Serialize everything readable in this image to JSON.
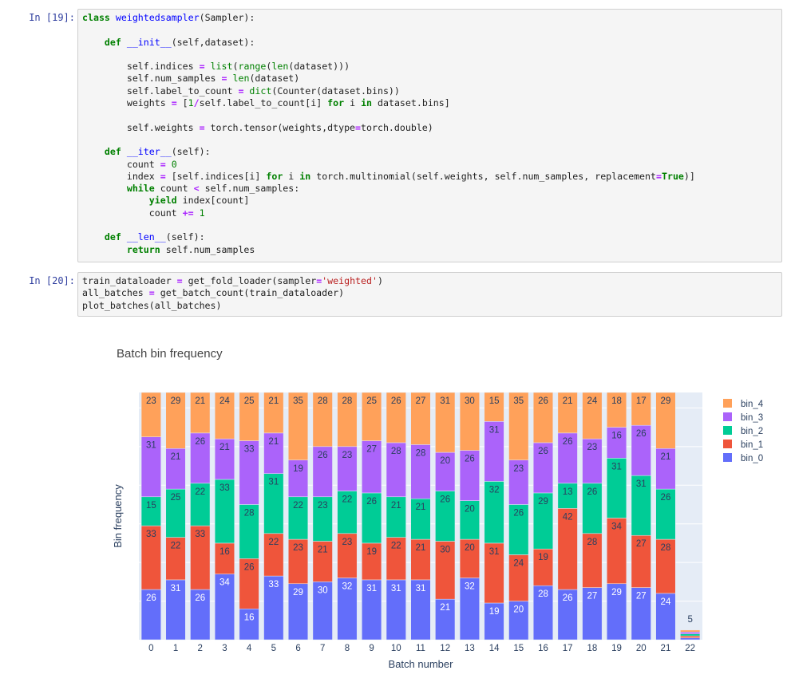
{
  "cells": [
    {
      "prompt": "In [19]:",
      "lines": [
        [
          [
            "kw",
            "class "
          ],
          [
            "fn",
            "weightedsampler"
          ],
          [
            "pl",
            "(Sampler):"
          ]
        ],
        [],
        [
          [
            "pl",
            "    "
          ],
          [
            "kw",
            "def "
          ],
          [
            "fn",
            "__init__"
          ],
          [
            "pl",
            "(self,dataset):"
          ]
        ],
        [],
        [
          [
            "pl",
            "        self.indices "
          ],
          [
            "op",
            "="
          ],
          [
            "pl",
            " "
          ],
          [
            "bi",
            "list"
          ],
          [
            "pl",
            "("
          ],
          [
            "bi",
            "range"
          ],
          [
            "pl",
            "("
          ],
          [
            "bi",
            "len"
          ],
          [
            "pl",
            "(dataset)))"
          ]
        ],
        [
          [
            "pl",
            "        self.num_samples "
          ],
          [
            "op",
            "="
          ],
          [
            "pl",
            " "
          ],
          [
            "bi",
            "len"
          ],
          [
            "pl",
            "(dataset)"
          ]
        ],
        [
          [
            "pl",
            "        self.label_to_count "
          ],
          [
            "op",
            "="
          ],
          [
            "pl",
            " "
          ],
          [
            "bi",
            "dict"
          ],
          [
            "pl",
            "(Counter(dataset.bins))"
          ]
        ],
        [
          [
            "pl",
            "        weights "
          ],
          [
            "op",
            "="
          ],
          [
            "pl",
            " ["
          ],
          [
            "num",
            "1"
          ],
          [
            "op",
            "/"
          ],
          [
            "pl",
            "self.label_to_count[i] "
          ],
          [
            "kw",
            "for"
          ],
          [
            "pl",
            " i "
          ],
          [
            "kw",
            "in"
          ],
          [
            "pl",
            " dataset.bins]"
          ]
        ],
        [],
        [
          [
            "pl",
            "        self.weights "
          ],
          [
            "op",
            "="
          ],
          [
            "pl",
            " torch.tensor(weights,dtype"
          ],
          [
            "op",
            "="
          ],
          [
            "pl",
            "torch.double)"
          ]
        ],
        [],
        [
          [
            "pl",
            "    "
          ],
          [
            "kw",
            "def "
          ],
          [
            "fn",
            "__iter__"
          ],
          [
            "pl",
            "(self):"
          ]
        ],
        [
          [
            "pl",
            "        count "
          ],
          [
            "op",
            "="
          ],
          [
            "pl",
            " "
          ],
          [
            "num",
            "0"
          ]
        ],
        [
          [
            "pl",
            "        index "
          ],
          [
            "op",
            "="
          ],
          [
            "pl",
            " [self.indices[i] "
          ],
          [
            "kw",
            "for"
          ],
          [
            "pl",
            " i "
          ],
          [
            "kw",
            "in"
          ],
          [
            "pl",
            " torch.multinomial(self.weights, self.num_samples, replacement"
          ],
          [
            "op",
            "="
          ],
          [
            "kw",
            "True"
          ],
          [
            "pl",
            ")]"
          ]
        ],
        [
          [
            "pl",
            "        "
          ],
          [
            "kw",
            "while"
          ],
          [
            "pl",
            " count "
          ],
          [
            "op",
            "<"
          ],
          [
            "pl",
            " self.num_samples:"
          ]
        ],
        [
          [
            "pl",
            "            "
          ],
          [
            "kw",
            "yield"
          ],
          [
            "pl",
            " index[count]"
          ]
        ],
        [
          [
            "pl",
            "            count "
          ],
          [
            "op",
            "+="
          ],
          [
            "pl",
            " "
          ],
          [
            "num",
            "1"
          ]
        ],
        [],
        [
          [
            "pl",
            "    "
          ],
          [
            "kw",
            "def "
          ],
          [
            "fn",
            "__len__"
          ],
          [
            "pl",
            "(self):"
          ]
        ],
        [
          [
            "pl",
            "        "
          ],
          [
            "kw",
            "return"
          ],
          [
            "pl",
            " self.num_samples"
          ]
        ]
      ]
    },
    {
      "prompt": "In [20]:",
      "lines": [
        [
          [
            "pl",
            "train_dataloader "
          ],
          [
            "op",
            "="
          ],
          [
            "pl",
            " get_fold_loader(sampler"
          ],
          [
            "op",
            "="
          ],
          [
            "str",
            "'weighted'"
          ],
          [
            "pl",
            ")"
          ]
        ],
        [
          [
            "pl",
            "all_batches "
          ],
          [
            "op",
            "="
          ],
          [
            "pl",
            " get_batch_count(train_dataloader)"
          ]
        ],
        [
          [
            "pl",
            "plot_batches(all_batches)"
          ]
        ]
      ]
    }
  ],
  "chart_data": {
    "type": "bar",
    "stacked": true,
    "title": "Batch bin frequency",
    "xlabel": "Batch number",
    "ylabel": "Bin frequency",
    "categories": [
      "0",
      "1",
      "2",
      "3",
      "4",
      "5",
      "6",
      "7",
      "8",
      "9",
      "10",
      "11",
      "12",
      "13",
      "14",
      "15",
      "16",
      "17",
      "18",
      "19",
      "20",
      "21",
      "22"
    ],
    "ylim": [
      0,
      128
    ],
    "series": [
      {
        "name": "bin_0",
        "color": "#636efa",
        "values": [
          26,
          31,
          26,
          34,
          16,
          33,
          29,
          30,
          32,
          31,
          31,
          31,
          21,
          32,
          19,
          20,
          28,
          26,
          27,
          29,
          27,
          24,
          1
        ]
      },
      {
        "name": "bin_1",
        "color": "#ef553b",
        "values": [
          33,
          22,
          33,
          16,
          26,
          22,
          23,
          21,
          23,
          19,
          22,
          21,
          30,
          20,
          31,
          24,
          19,
          42,
          28,
          34,
          27,
          28,
          1
        ]
      },
      {
        "name": "bin_2",
        "color": "#00cc96",
        "values": [
          15,
          25,
          22,
          33,
          28,
          31,
          22,
          23,
          22,
          26,
          21,
          21,
          26,
          20,
          32,
          26,
          29,
          13,
          26,
          31,
          31,
          26,
          1
        ]
      },
      {
        "name": "bin_3",
        "color": "#ab63fa",
        "values": [
          31,
          21,
          26,
          21,
          33,
          21,
          19,
          26,
          23,
          27,
          28,
          28,
          20,
          26,
          31,
          23,
          26,
          26,
          23,
          16,
          26,
          21,
          1
        ]
      },
      {
        "name": "bin_4",
        "color": "#ffa15a",
        "values": [
          23,
          29,
          21,
          24,
          25,
          21,
          35,
          28,
          28,
          25,
          26,
          27,
          31,
          30,
          15,
          35,
          26,
          21,
          24,
          18,
          17,
          29,
          1
        ]
      }
    ],
    "totals_label": {
      "22": "5"
    },
    "legend_position": "right",
    "grid": true
  }
}
